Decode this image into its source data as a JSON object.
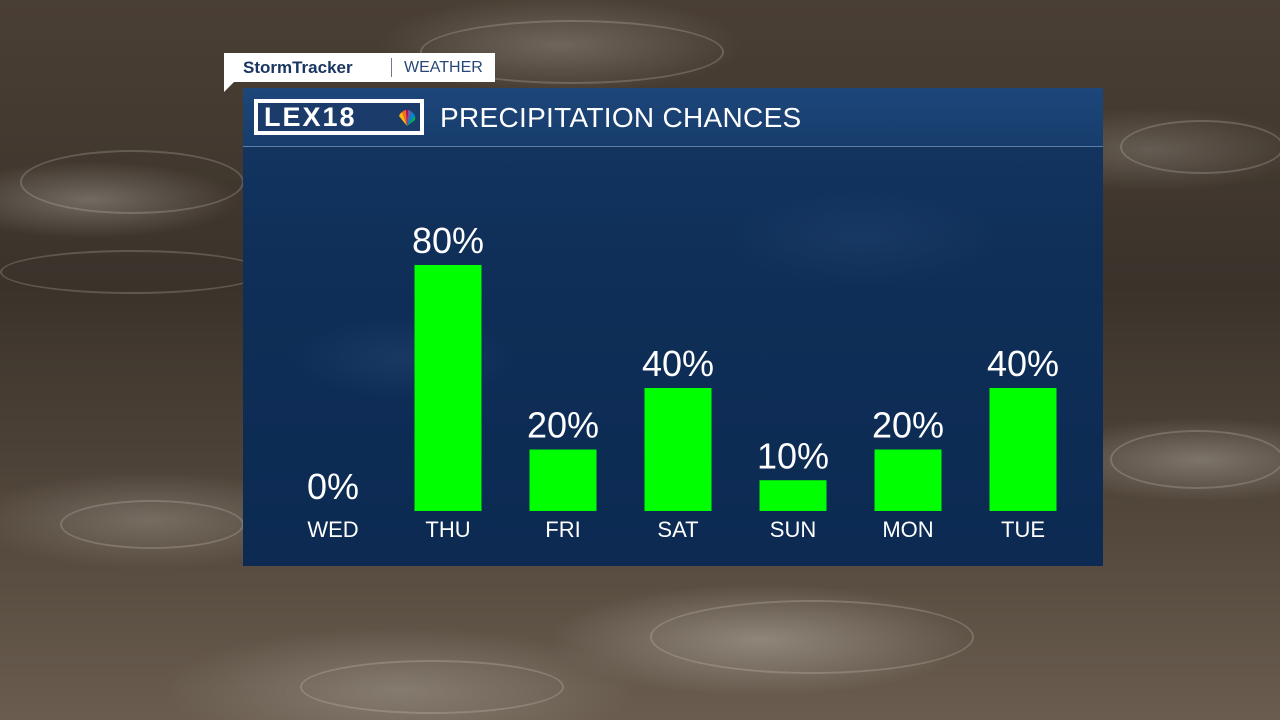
{
  "brand_tag": {
    "brand": "StormTracker",
    "section": "WEATHER"
  },
  "logo": {
    "text": "LEX18",
    "icon": "peacock-icon"
  },
  "colors": {
    "bar": "#00ff00",
    "panel": "#0f2f58",
    "header": "#1d467a",
    "text": "#ffffff"
  },
  "chart_data": {
    "type": "bar",
    "title": "PRECIPITATION CHANCES",
    "categories": [
      "WED",
      "THU",
      "FRI",
      "SAT",
      "SUN",
      "MON",
      "TUE"
    ],
    "values": [
      0,
      80,
      20,
      40,
      10,
      20,
      40
    ],
    "value_labels": [
      "0%",
      "80%",
      "20%",
      "40%",
      "10%",
      "20%",
      "40%"
    ],
    "unit": "%",
    "ylim": [
      0,
      100
    ],
    "grid": false,
    "legend": "none"
  }
}
